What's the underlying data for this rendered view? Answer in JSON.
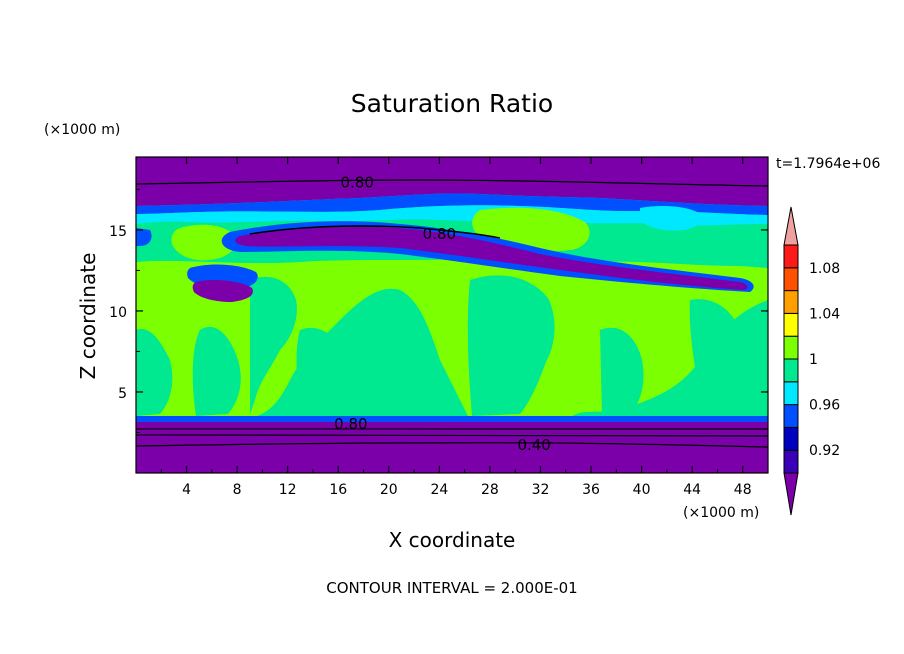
{
  "chart_data": {
    "type": "heatmap",
    "title": "Saturation Ratio",
    "xlabel": "X coordinate",
    "ylabel": "Z coordinate",
    "x_unit": "(×1000 m)",
    "y_unit": "(×1000 m)",
    "xlim": [
      0,
      50
    ],
    "ylim": [
      0,
      19.5
    ],
    "x_ticks": [
      4,
      8,
      12,
      16,
      20,
      24,
      28,
      32,
      36,
      40,
      44,
      48
    ],
    "y_ticks": [
      5,
      10,
      15
    ],
    "time_label": "t=1.7964e+06",
    "footer": "CONTOUR INTERVAL = 2.000E-01",
    "contour_labels": [
      {
        "text": "0.80",
        "x": 17.5,
        "z": 18.0
      },
      {
        "text": "0.80",
        "x": 24.0,
        "z": 14.8
      },
      {
        "text": "0.80",
        "x": 17.0,
        "z": 3.1
      },
      {
        "text": "0.40",
        "x": 31.5,
        "z": 1.8
      }
    ],
    "colorbar": {
      "labels": [
        "0.92",
        "0.96",
        "1",
        "1.04",
        "1.08"
      ],
      "colors": [
        "#7b00aa",
        "#3a00b8",
        "#0000c0",
        "#0050ff",
        "#00e8ff",
        "#00e890",
        "#7cff00",
        "#ffff00",
        "#ffa000",
        "#ff5000",
        "#ff1a1a",
        "#f0a0a0"
      ]
    },
    "palette": {
      "purple": "#7b00aa",
      "blue": "#0050ff",
      "cyan": "#00e8ff",
      "teal": "#00e890",
      "green": "#7cff00"
    }
  }
}
